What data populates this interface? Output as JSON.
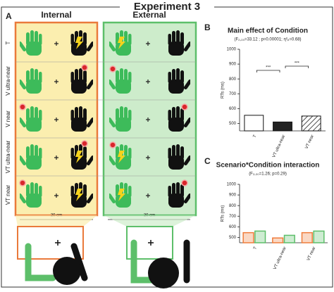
{
  "title": "Experiment 3",
  "panels": [
    "A",
    "B",
    "C"
  ],
  "diagram": {
    "columns": [
      "Internal",
      "External"
    ],
    "rows": [
      "T",
      "V ultra-near",
      "V near",
      "VT ultra-near",
      "VT near"
    ],
    "distance": [
      "20 cm",
      "20 cm"
    ]
  },
  "chart_data": [
    {
      "type": "bar",
      "title": "Main effect of Condition",
      "subtitle": "(F₂,₃₀=33.12 ; p=0.00001; η²ₚ=0.68)",
      "y_label": "RTs (ms)",
      "categories": [
        "T",
        "VT ultra-near",
        "VT near"
      ],
      "values": [
        555,
        510,
        550
      ],
      "colors": [
        "#ffffff",
        "#222222",
        "#ffffff"
      ],
      "hatch": [
        false,
        false,
        true
      ],
      "annotations": [
        "***",
        "***"
      ],
      "ylim": [
        450,
        1000
      ],
      "yticks": [
        500,
        600,
        700,
        800,
        900,
        1000
      ]
    },
    {
      "type": "grouped_bar",
      "title": "Scenario*Condition interaction",
      "subtitle": "(F₂,₃₀=1.26; p=0.29)",
      "y_label": "RTs (ms)",
      "categories": [
        "T",
        "VT ultra-near",
        "VT near"
      ],
      "series": [
        {
          "color": "#f07d3c",
          "values": [
            545,
            495,
            545
          ]
        },
        {
          "color": "#5dbf6a",
          "values": [
            560,
            520,
            560
          ]
        }
      ],
      "ylim": [
        450,
        1000
      ],
      "yticks": [
        500,
        600,
        700,
        800,
        900,
        1000
      ]
    }
  ]
}
